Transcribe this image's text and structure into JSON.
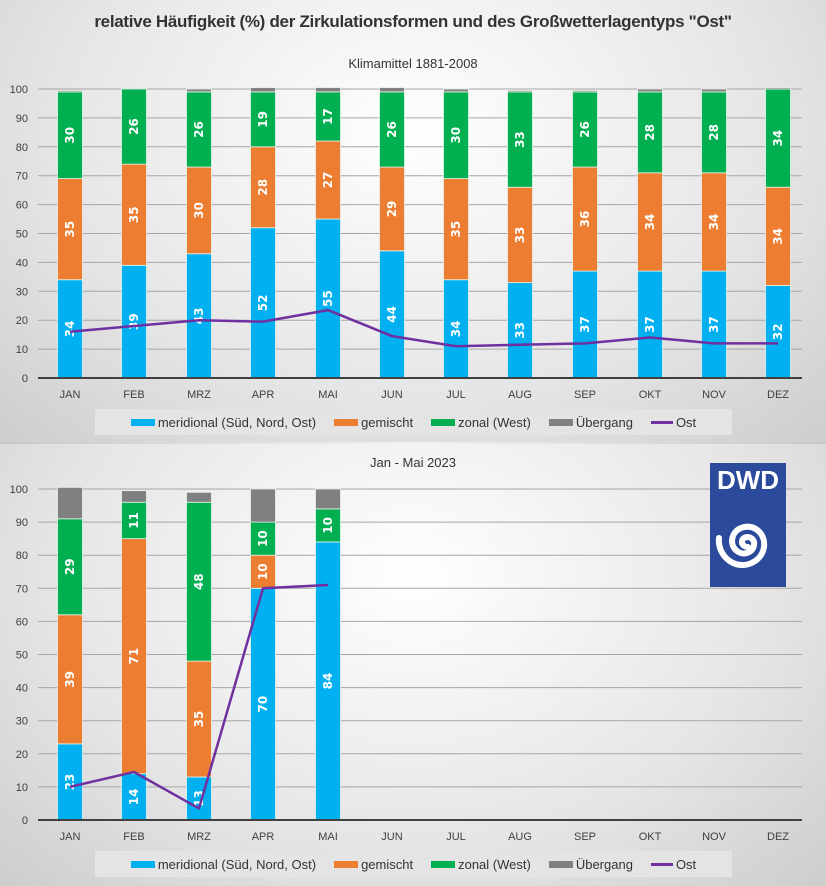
{
  "main_title": "relative Häufigkeit (%) der Zirkulationsformen und des Großwetterlagentyps \"Ost\"",
  "colors": {
    "meridional": "#00b0f0",
    "gemischt": "#ed7d31",
    "zonal": "#00b050",
    "uebergang": "#808080",
    "ost": "#7030a0"
  },
  "legend": {
    "meridional": "meridional (Süd, Nord, Ost)",
    "gemischt": "gemischt",
    "zonal": "zonal (West)",
    "uebergang": "Übergang",
    "ost": "Ost"
  },
  "logo": {
    "text": "DWD",
    "icon": "spiral-icon"
  },
  "chart_data": [
    {
      "type": "bar",
      "stacked": true,
      "title": "Klimamittel 1881-2008",
      "categories": [
        "JAN",
        "FEB",
        "MRZ",
        "APR",
        "MAI",
        "JUN",
        "JUL",
        "AUG",
        "SEP",
        "OKT",
        "NOV",
        "DEZ"
      ],
      "ylim": [
        0,
        100
      ],
      "yticks": [
        0,
        10,
        20,
        30,
        40,
        50,
        60,
        70,
        80,
        90,
        100
      ],
      "grid": true,
      "legend_position": "bottom",
      "series": [
        {
          "name": "meridional (Süd, Nord, Ost)",
          "key": "meridional",
          "values": [
            34,
            39,
            43,
            52,
            55,
            44,
            34,
            33,
            37,
            37,
            37,
            32
          ]
        },
        {
          "name": "gemischt",
          "key": "gemischt",
          "values": [
            35,
            35,
            30,
            28,
            27,
            29,
            35,
            33,
            36,
            34,
            34,
            34
          ]
        },
        {
          "name": "zonal (West)",
          "key": "zonal",
          "values": [
            30,
            26,
            26,
            19,
            17,
            26,
            30,
            33,
            26,
            28,
            28,
            34
          ]
        },
        {
          "name": "Übergang",
          "key": "uebergang",
          "values": [
            0.5,
            0,
            1,
            1.5,
            1.5,
            1.5,
            1,
            0.5,
            0.5,
            1,
            1,
            0.5
          ]
        },
        {
          "name": "Ost",
          "key": "ost",
          "type": "line",
          "values": [
            16,
            18,
            20,
            19.5,
            23.5,
            14.5,
            11,
            11.5,
            12,
            14,
            12,
            12
          ]
        }
      ]
    },
    {
      "type": "bar",
      "stacked": true,
      "title": "Jan - Mai 2023",
      "categories": [
        "JAN",
        "FEB",
        "MRZ",
        "APR",
        "MAI",
        "JUN",
        "JUL",
        "AUG",
        "SEP",
        "OKT",
        "NOV",
        "DEZ"
      ],
      "ylim": [
        0,
        100
      ],
      "yticks": [
        0,
        10,
        20,
        30,
        40,
        50,
        60,
        70,
        80,
        90,
        100
      ],
      "grid": true,
      "legend_position": "bottom",
      "series": [
        {
          "name": "meridional (Süd, Nord, Ost)",
          "key": "meridional",
          "values": [
            23,
            14,
            13,
            70,
            84,
            null,
            null,
            null,
            null,
            null,
            null,
            null
          ]
        },
        {
          "name": "gemischt",
          "key": "gemischt",
          "values": [
            39,
            71,
            35,
            10,
            0,
            null,
            null,
            null,
            null,
            null,
            null,
            null
          ]
        },
        {
          "name": "zonal (West)",
          "key": "zonal",
          "values": [
            29,
            11,
            48,
            10,
            10,
            null,
            null,
            null,
            null,
            null,
            null,
            null
          ]
        },
        {
          "name": "Übergang",
          "key": "uebergang",
          "values": [
            9.5,
            3.5,
            3,
            10,
            6,
            null,
            null,
            null,
            null,
            null,
            null,
            null
          ]
        },
        {
          "name": "Ost",
          "key": "ost",
          "type": "line",
          "values": [
            10,
            14.5,
            3.5,
            70,
            71,
            null,
            null,
            null,
            null,
            null,
            null,
            null
          ]
        }
      ]
    }
  ]
}
